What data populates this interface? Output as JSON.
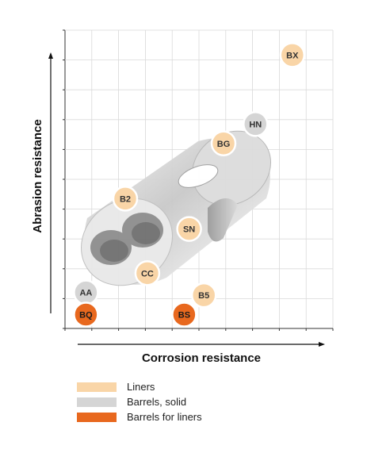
{
  "chart_data": {
    "type": "scatter",
    "xlabel": "Corrosion resistance",
    "ylabel": "Abrasion resistance",
    "xlim": [
      0,
      10
    ],
    "ylim": [
      0,
      10
    ],
    "grid": true,
    "legend_placement": "bottom",
    "categories": [
      {
        "name": "Liners",
        "color": "#f9d5a7"
      },
      {
        "name": "Barrels, solid",
        "color": "#d5d5d5"
      },
      {
        "name": "Barrels for liners",
        "color": "#e8681e"
      }
    ],
    "points": [
      {
        "label": "BX",
        "x": 8.8,
        "y": 9.5,
        "category": "Liners"
      },
      {
        "label": "HN",
        "x": 7.3,
        "y": 7.0,
        "category": "Barrels, solid"
      },
      {
        "label": "BG",
        "x": 6.0,
        "y": 6.3,
        "category": "Liners"
      },
      {
        "label": "B2",
        "x": 2.0,
        "y": 4.3,
        "category": "Liners"
      },
      {
        "label": "SN",
        "x": 4.6,
        "y": 3.2,
        "category": "Liners"
      },
      {
        "label": "CC",
        "x": 2.9,
        "y": 1.6,
        "category": "Liners"
      },
      {
        "label": "B5",
        "x": 5.2,
        "y": 0.8,
        "category": "Liners"
      },
      {
        "label": "AA",
        "x": 0.4,
        "y": 0.9,
        "category": "Barrels, solid"
      },
      {
        "label": "BQ",
        "x": 0.4,
        "y": 0.1,
        "category": "Barrels for liners"
      },
      {
        "label": "BS",
        "x": 4.4,
        "y": 0.1,
        "category": "Barrels for liners"
      }
    ]
  },
  "legend": {
    "items": [
      {
        "label": "Liners",
        "color": "#f9d5a7"
      },
      {
        "label": "Barrels, solid",
        "color": "#d5d5d5"
      },
      {
        "label": "Barrels for liners",
        "color": "#e8681e"
      }
    ]
  },
  "illustration": {
    "icon": "barrel-liner-cylinder-icon"
  }
}
